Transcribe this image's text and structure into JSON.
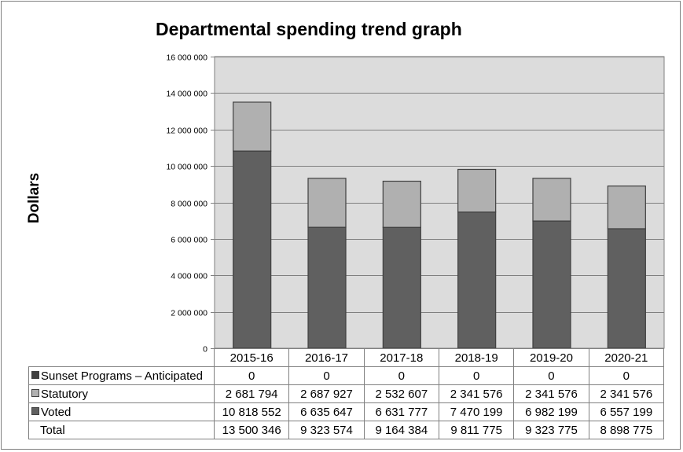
{
  "chart_data": {
    "type": "bar",
    "stacked": true,
    "title": "Departmental spending trend graph",
    "ylabel": "Dollars",
    "xlabel": "",
    "ylim": [
      0,
      16000000
    ],
    "yticks": [
      "0",
      "2 000 000",
      "4 000 000",
      "6 000 000",
      "8 000 000",
      "10 000 000",
      "12 000 000",
      "14 000 000",
      "16 000 000"
    ],
    "ytick_values": [
      0,
      2000000,
      4000000,
      6000000,
      8000000,
      10000000,
      12000000,
      14000000,
      16000000
    ],
    "grid": true,
    "legend_placement": "data table rows below chart",
    "categories": [
      "2015-16",
      "2016-17",
      "2017-18",
      "2018-19",
      "2019-20",
      "2020-21"
    ],
    "series": [
      {
        "name": "Sunset Programs – Anticipated",
        "values": [
          0,
          0,
          0,
          0,
          0,
          0
        ],
        "labels": [
          "0",
          "0",
          "0",
          "0",
          "0",
          "0"
        ],
        "color": "#404040"
      },
      {
        "name": "Statutory",
        "values": [
          2681794,
          2687927,
          2532607,
          2341576,
          2341576,
          2341576
        ],
        "labels": [
          "2 681 794",
          "2 687 927",
          "2 532 607",
          "2 341 576",
          "2 341 576",
          "2 341 576"
        ],
        "color": "#b0b0b0"
      },
      {
        "name": "Voted",
        "values": [
          10818552,
          6635647,
          6631777,
          7470199,
          6982199,
          6557199
        ],
        "labels": [
          "10 818 552",
          "6 635 647",
          "6 631 777",
          "7 470 199",
          "6 982 199",
          "6 557 199"
        ],
        "color": "#606060"
      }
    ],
    "total": {
      "name": "Total",
      "values": [
        13500346,
        9323574,
        9164384,
        9811775,
        9323775,
        8898775
      ],
      "labels": [
        "13 500 346",
        "9 323 574",
        "9 164 384",
        "9 811 775",
        "9 323 775",
        "8 898 775"
      ]
    },
    "colors": {
      "plot_background": "#dcdcdc",
      "gridline": "#808080",
      "bar_outline": "#404040"
    }
  }
}
